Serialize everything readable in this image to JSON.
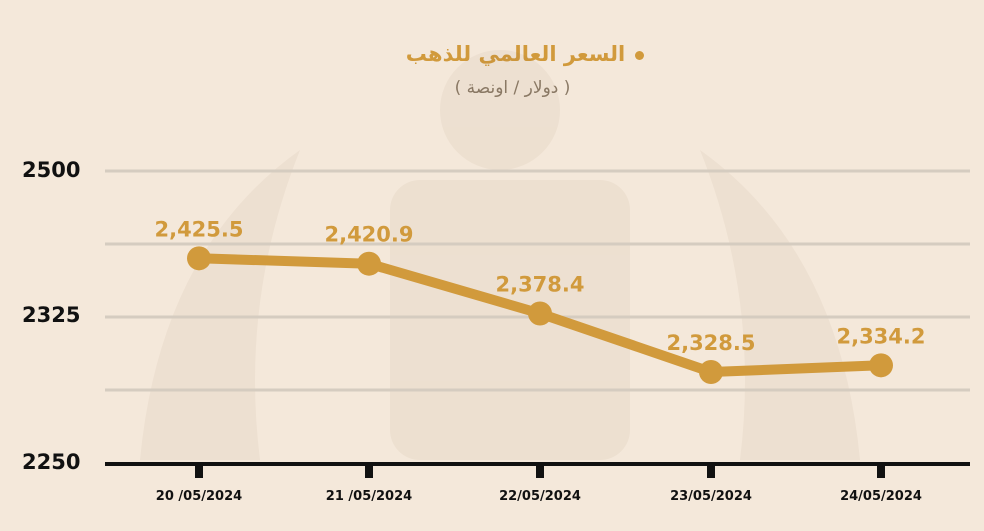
{
  "chart_data": {
    "type": "line",
    "title": "",
    "xlabel": "",
    "ylabel": "",
    "series": [
      {
        "name": "السعر العالمي للذهب",
        "values": [
          2425.5,
          2420.9,
          2378.4,
          2328.5,
          2334.2
        ],
        "labels": [
          "2,425.5",
          "2,420.9",
          "2,378.4",
          "2,328.5",
          "2,334.2"
        ]
      }
    ],
    "unit": "( دولار / اونصة )",
    "categories": [
      "20 /05/2024",
      "21 /05/2024",
      "22/05/2024",
      "23/05/2024",
      "24/05/2024"
    ],
    "y_ticks": [
      "2500",
      "2325",
      "2250"
    ],
    "ylim": [
      2250,
      2500
    ],
    "grid": true,
    "legend_position": "top-center",
    "color": "#d19a3c"
  }
}
